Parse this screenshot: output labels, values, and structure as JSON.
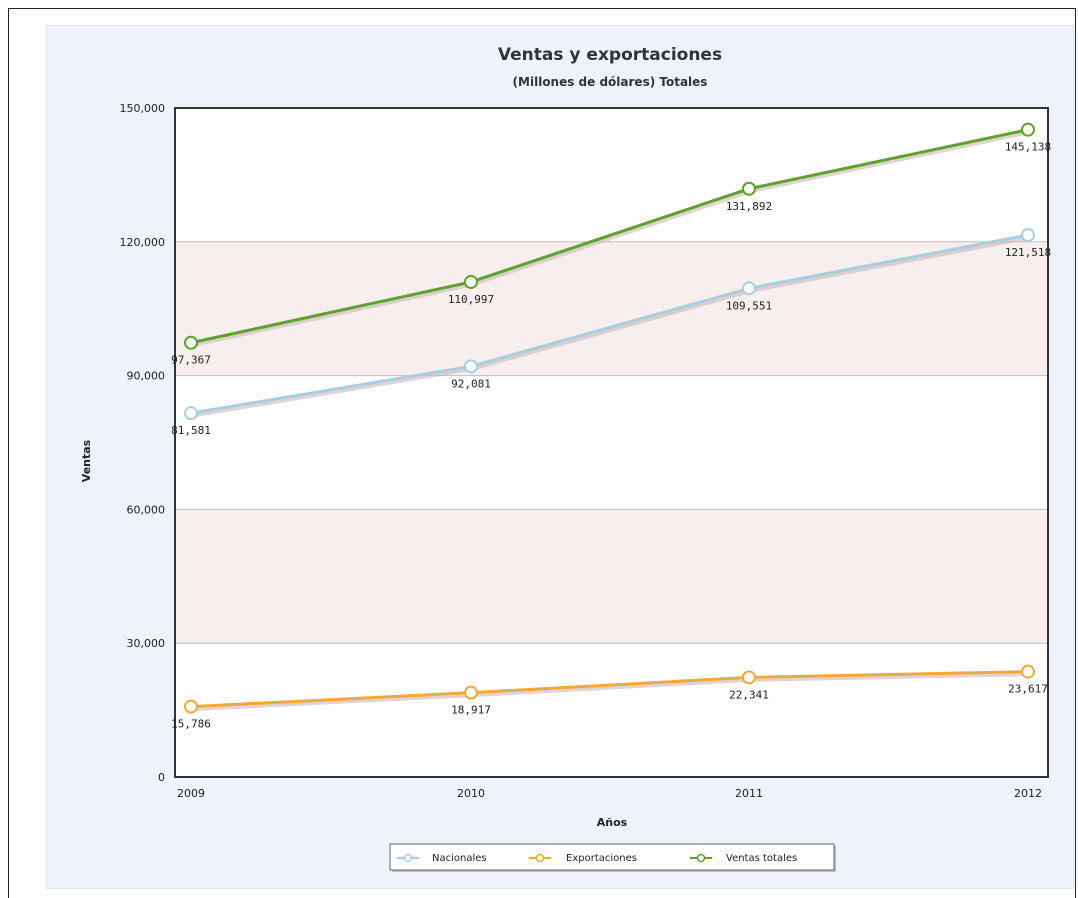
{
  "chart_data": {
    "type": "line",
    "title": "Ventas y exportaciones",
    "subtitle": "(Millones de dólares) Totales",
    "xlabel": "Años",
    "ylabel": "Ventas",
    "categories": [
      "2009",
      "2010",
      "2011",
      "2012"
    ],
    "ylim": [
      0,
      150000
    ],
    "yticks": [
      0,
      30000,
      60000,
      90000,
      120000,
      150000
    ],
    "ytick_labels": [
      "0",
      "30,000",
      "60,000",
      "90,000",
      "120,000",
      "150,000"
    ],
    "grid": true,
    "legend_position": "bottom",
    "series": [
      {
        "name": "Nacionales",
        "color": "#a9cde3",
        "values": [
          81581,
          92081,
          109551,
          121518
        ],
        "labels": [
          "81,581",
          "92,081",
          "109,551",
          "121,518"
        ]
      },
      {
        "name": "Exportaciones",
        "color": "#f2a93b",
        "values": [
          15786,
          18917,
          22341,
          23617
        ],
        "labels": [
          "15,786",
          "18,917",
          "22,341",
          "23,617"
        ]
      },
      {
        "name": "Ventas totales",
        "color": "#5ea12e",
        "values": [
          97367,
          110997,
          131892,
          145138
        ],
        "labels": [
          "97,367",
          "110,997",
          "131,892",
          "145,138"
        ]
      }
    ]
  }
}
